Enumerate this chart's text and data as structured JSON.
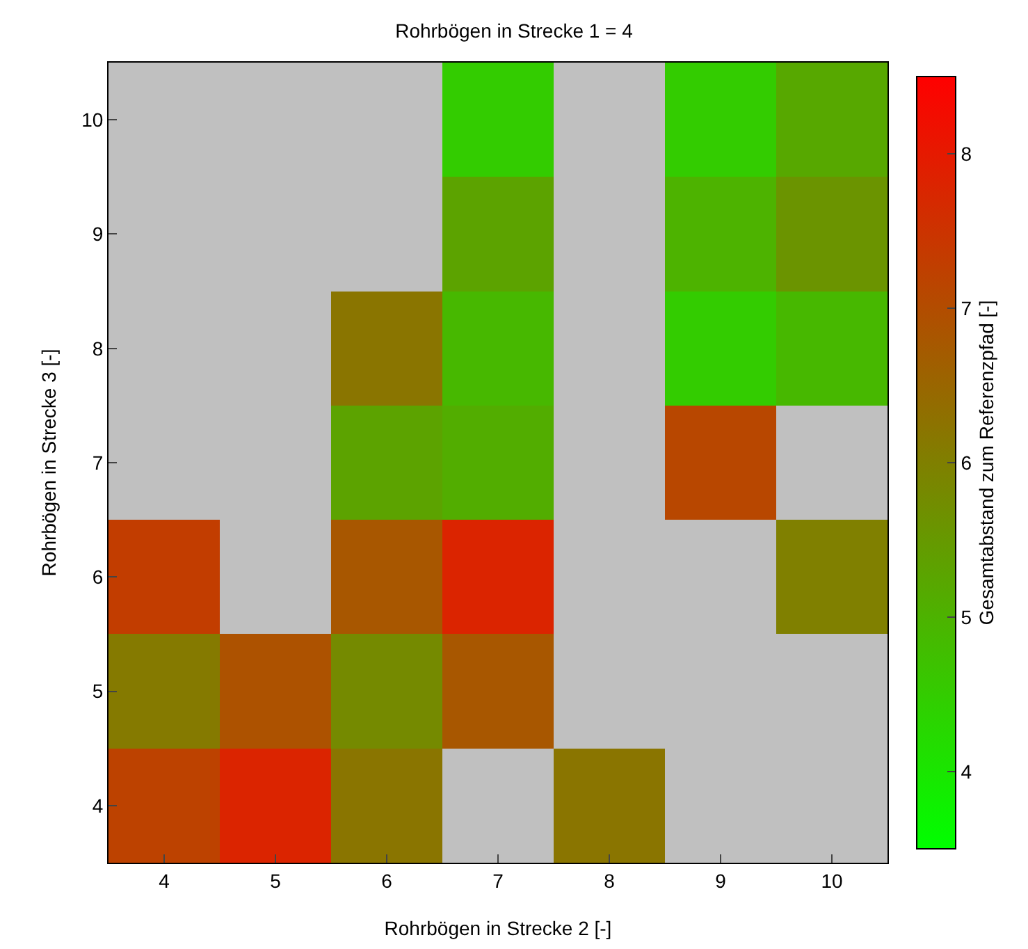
{
  "chart_data": {
    "type": "heatmap",
    "title": "Rohrbögen in Strecke 1 = 4",
    "xlabel": "Rohrbögen in Strecke 2 [-]",
    "ylabel": "Rohrbögen in Strecke 3 [-]",
    "clabel": "Gesamtabstand zum Referenzpfad [-]",
    "categories": [
      "4",
      "5",
      "6",
      "7",
      "8",
      "9",
      "10"
    ],
    "y_categories": [
      "10",
      "9",
      "8",
      "7",
      "6",
      "5",
      "4"
    ],
    "cells": [
      [
        null,
        null,
        null,
        4.5,
        null,
        4.5,
        5.2
      ],
      [
        null,
        null,
        null,
        5.3,
        null,
        5.0,
        5.6
      ],
      [
        null,
        null,
        6.2,
        4.9,
        null,
        4.5,
        4.9
      ],
      [
        null,
        null,
        5.3,
        5.1,
        null,
        7.1,
        null
      ],
      [
        7.3,
        null,
        6.8,
        7.8,
        null,
        null,
        6.0
      ],
      [
        6.1,
        6.9,
        5.8,
        6.8,
        null,
        null,
        null
      ],
      [
        7.2,
        7.8,
        6.2,
        null,
        6.2,
        null,
        null
      ]
    ],
    "clim": [
      3.5,
      8.5
    ],
    "cticks": [
      4,
      5,
      6,
      7,
      8
    ]
  }
}
